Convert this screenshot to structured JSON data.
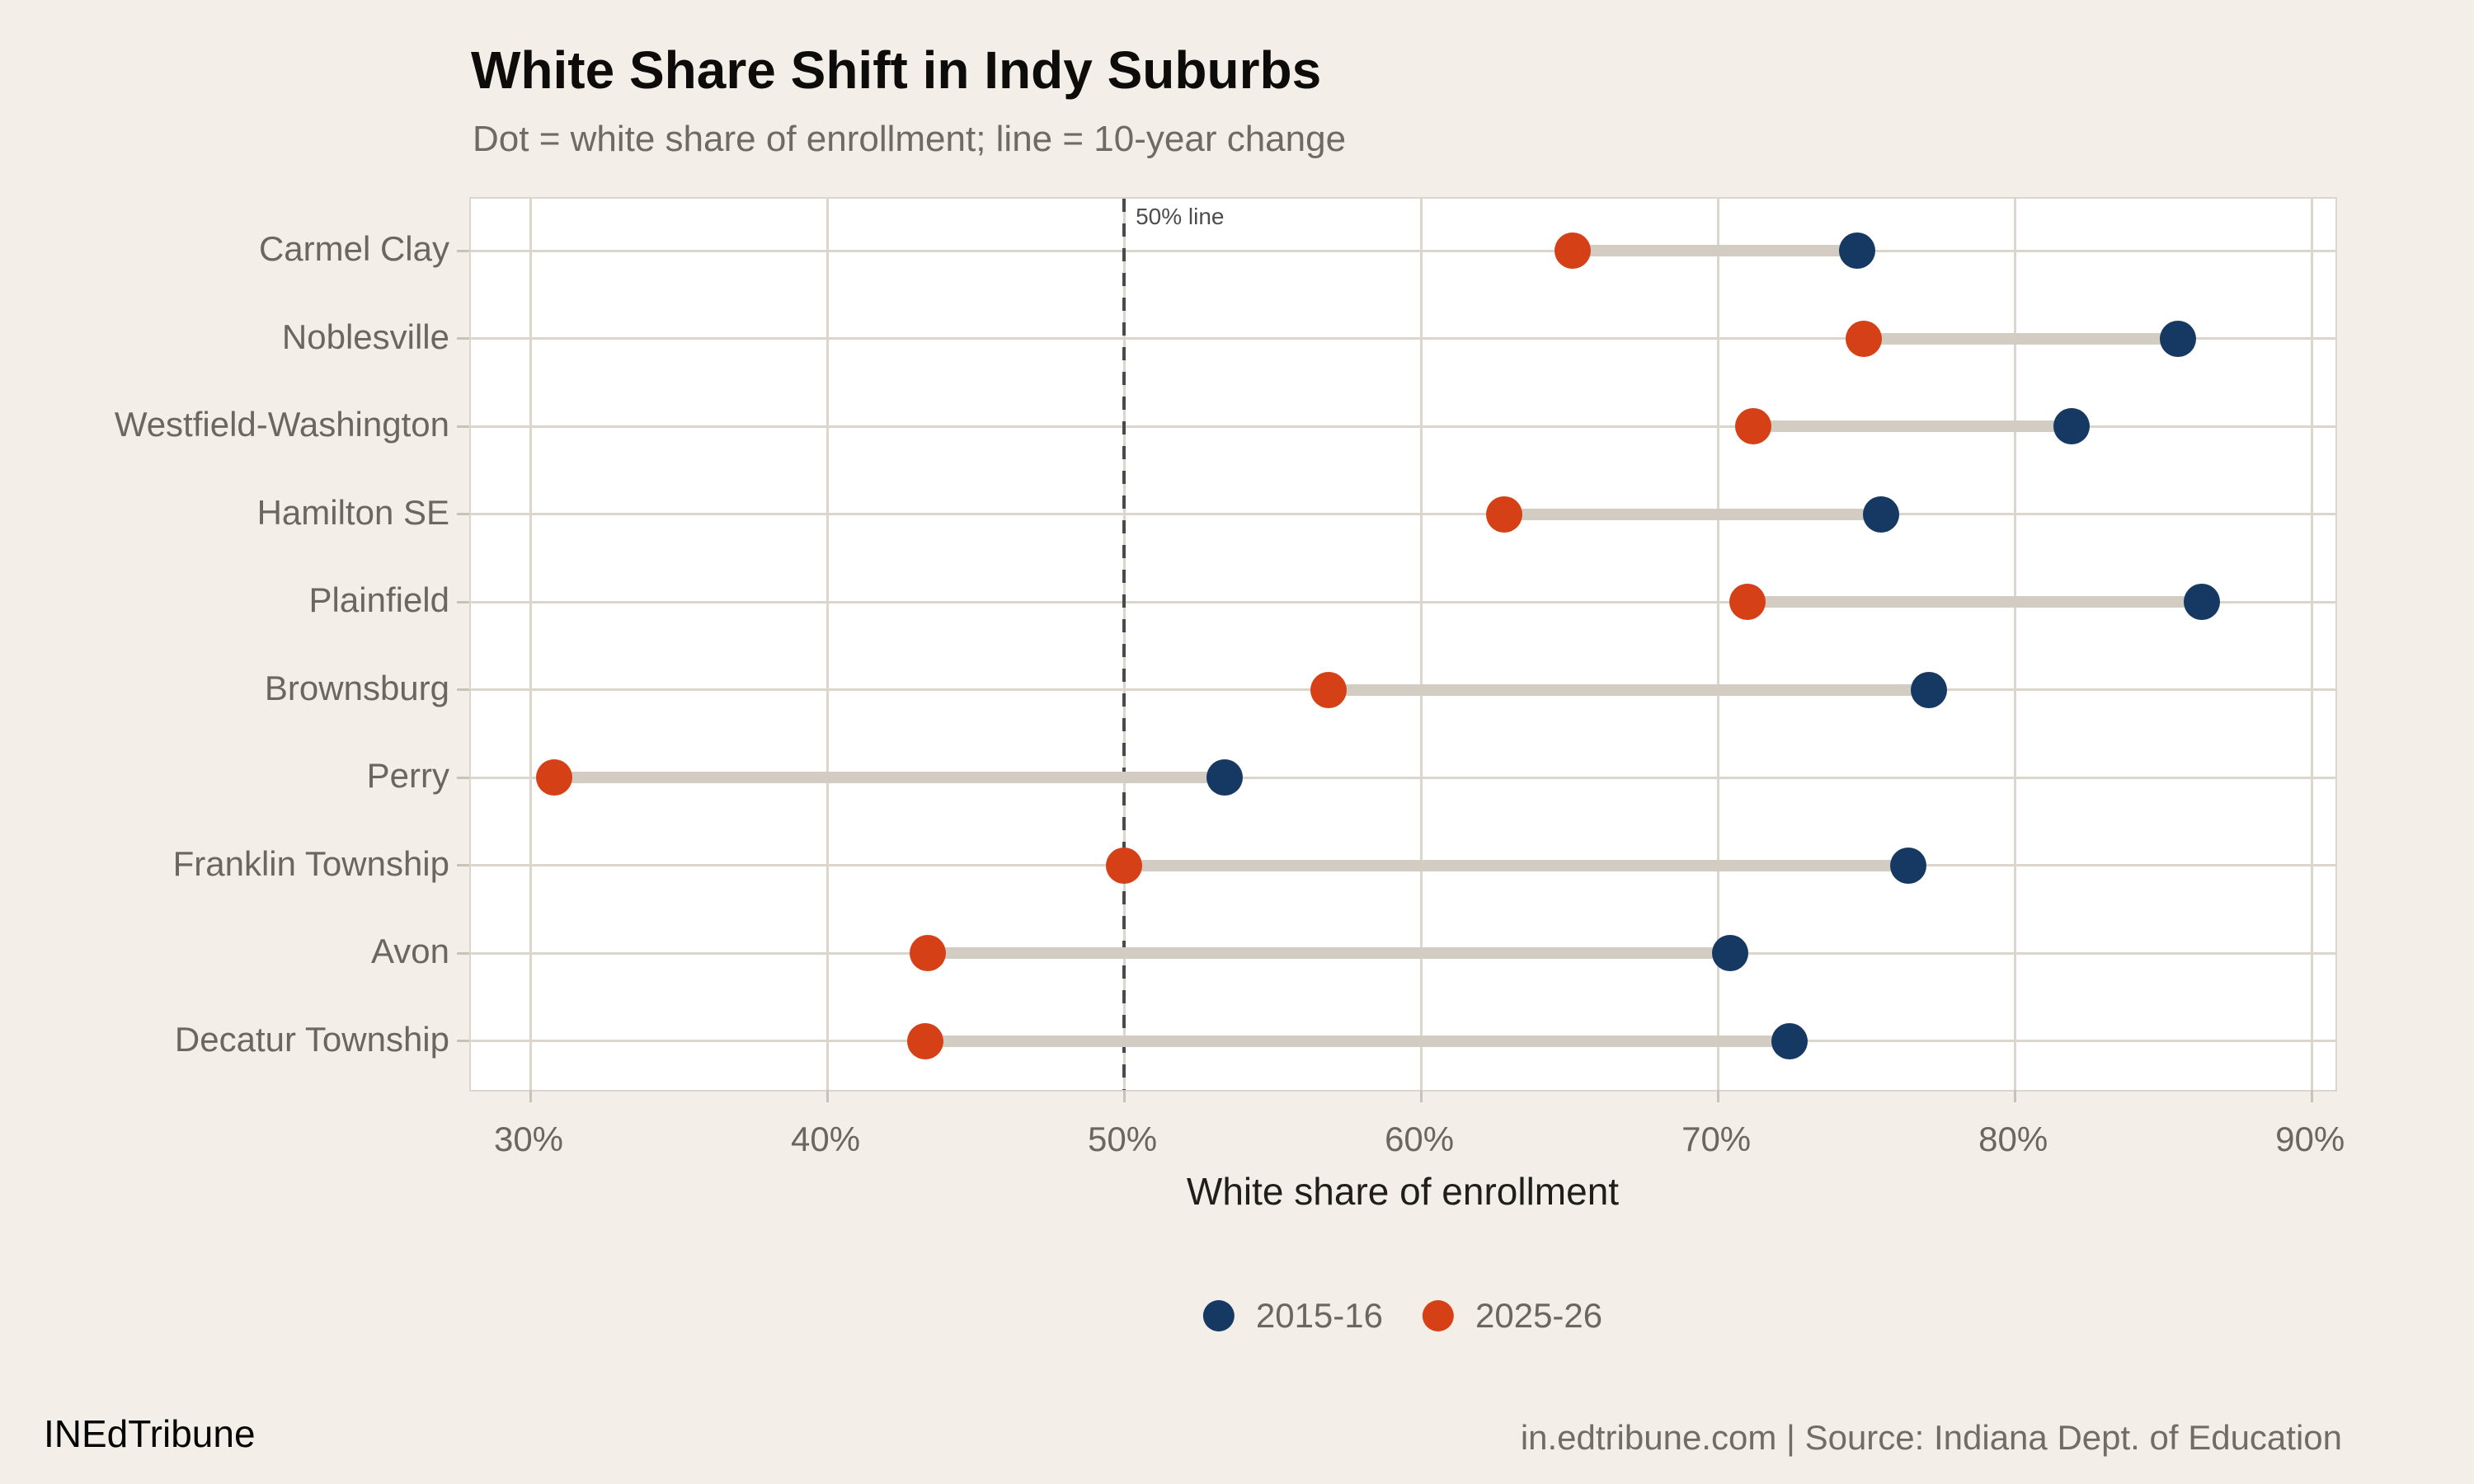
{
  "page": {
    "title": "White Share Shift in Indy Suburbs",
    "subtitle": "Dot = white share of enrollment; line = 10-year change",
    "footer_left": "INEdTribune",
    "footer_right": "in.edtribune.com | Source: Indiana Dept. of Education"
  },
  "chart_data": {
    "type": "dumbbell",
    "title": "White Share Shift in Indy Suburbs",
    "subtitle": "Dot = white share of enrollment; line = 10-year change",
    "xlabel": "White share of enrollment",
    "annotation": "50% line",
    "reference_line_x": 50,
    "categories": [
      "Carmel Clay",
      "Noblesville",
      "Westfield-Washington",
      "Hamilton SE",
      "Plainfield",
      "Brownsburg",
      "Perry",
      "Franklin Township",
      "Avon",
      "Decatur Township"
    ],
    "series": [
      {
        "name": "2015-16",
        "color": "#153962",
        "values": [
          74.7,
          85.5,
          81.9,
          75.5,
          86.3,
          77.1,
          53.4,
          76.4,
          70.4,
          72.4
        ]
      },
      {
        "name": "2025-26",
        "color": "#d64016",
        "values": [
          65.1,
          74.9,
          71.2,
          62.8,
          71.0,
          56.9,
          30.8,
          50.0,
          43.4,
          43.3
        ]
      }
    ],
    "x_ticks": [
      30,
      40,
      50,
      60,
      70,
      80,
      90
    ],
    "x_tick_suffix": "%",
    "xlim": [
      28.0,
      90.8
    ],
    "grid": true,
    "legend_position": "bottom",
    "colors": {
      "background": "#f3efe8",
      "panel": "#ffffff",
      "gridline": "#dbd5cc",
      "connector": "#d2ccc3",
      "dashed_line": "#4a4a4a"
    }
  }
}
